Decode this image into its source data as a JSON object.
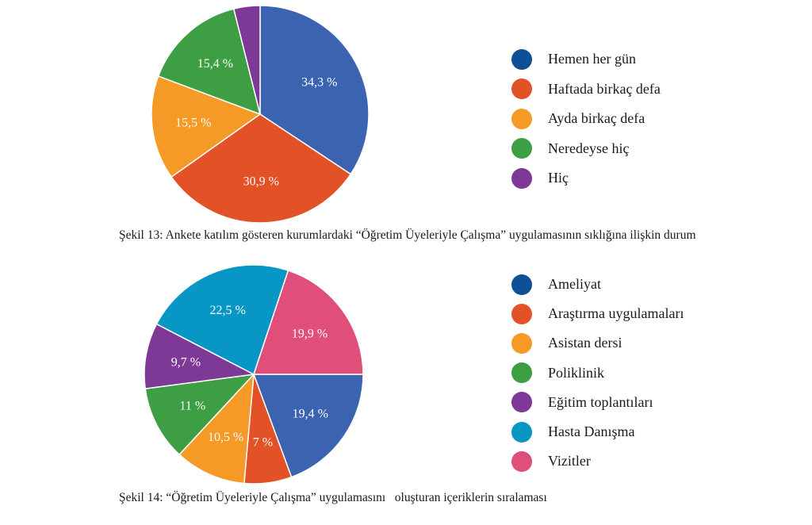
{
  "chart_data": [
    {
      "type": "pie",
      "caption": "Şekil 13: Ankete katılım gösteren kurumlardaki “Öğretim Üyeleriyle Çalışma” uygulamasının sıklığına ilişkin durum",
      "legend_position": "right",
      "series": [
        {
          "name": "Hemen her gün",
          "value": 34.3,
          "label": "34,3 %",
          "color": "#3b63b0"
        },
        {
          "name": "Haftada birkaç defa",
          "value": 30.9,
          "label": "30,9 %",
          "color": "#e35226"
        },
        {
          "name": "Ayda birkaç defa",
          "value": 15.5,
          "label": "15,5 %",
          "color": "#f59a26"
        },
        {
          "name": "Neredeyse hiç",
          "value": 15.4,
          "label": "15,4 %",
          "color": "#3e9e44"
        },
        {
          "name": "Hiç",
          "value": 3.9,
          "label": "",
          "color": "#7e3896"
        }
      ],
      "legend": [
        {
          "name": "Hemen her gün",
          "color": "#0e4f95"
        },
        {
          "name": "Haftada birkaç defa",
          "color": "#e35226"
        },
        {
          "name": "Ayda birkaç defa",
          "color": "#f59a26"
        },
        {
          "name": "Neredeyse hiç",
          "color": "#3e9e44"
        },
        {
          "name": "Hiç",
          "color": "#7e3896"
        }
      ]
    },
    {
      "type": "pie",
      "caption": "Şekil 14: “Öğretim Üyeleriyle Çalışma” uygulamasını   oluşturan içeriklerin sıralaması",
      "legend_position": "right",
      "series": [
        {
          "name": "Ameliyat",
          "value": 19.4,
          "label": "19,4 %",
          "color": "#3b63b0"
        },
        {
          "name": "Araştırma uygulamaları",
          "value": 7,
          "label": "7 %",
          "color": "#e35226"
        },
        {
          "name": "Asistan dersi",
          "value": 10.5,
          "label": "10,5 %",
          "color": "#f59a26"
        },
        {
          "name": "Poliklinik",
          "value": 11,
          "label": "11 %",
          "color": "#3e9e44"
        },
        {
          "name": "Eğitim toplantıları",
          "value": 9.7,
          "label": "9,7 %",
          "color": "#7e3896"
        },
        {
          "name": "Hasta Danışma",
          "value": 22.5,
          "label": "22,5 %",
          "color": "#0896c5"
        },
        {
          "name": "Vizitler",
          "value": 19.9,
          "label": "19,9 %",
          "color": "#e04e7a"
        }
      ],
      "legend": [
        {
          "name": "Ameliyat",
          "color": "#0e4f95"
        },
        {
          "name": "Araştırma uygulamaları",
          "color": "#e35226"
        },
        {
          "name": "Asistan dersi",
          "color": "#f59a26"
        },
        {
          "name": "Poliklinik",
          "color": "#3e9e44"
        },
        {
          "name": "Eğitim toplantıları",
          "color": "#7e3896"
        },
        {
          "name": "Hasta Danışma",
          "color": "#0896c5"
        },
        {
          "name": "Vizitler",
          "color": "#e04e7a"
        }
      ]
    }
  ]
}
